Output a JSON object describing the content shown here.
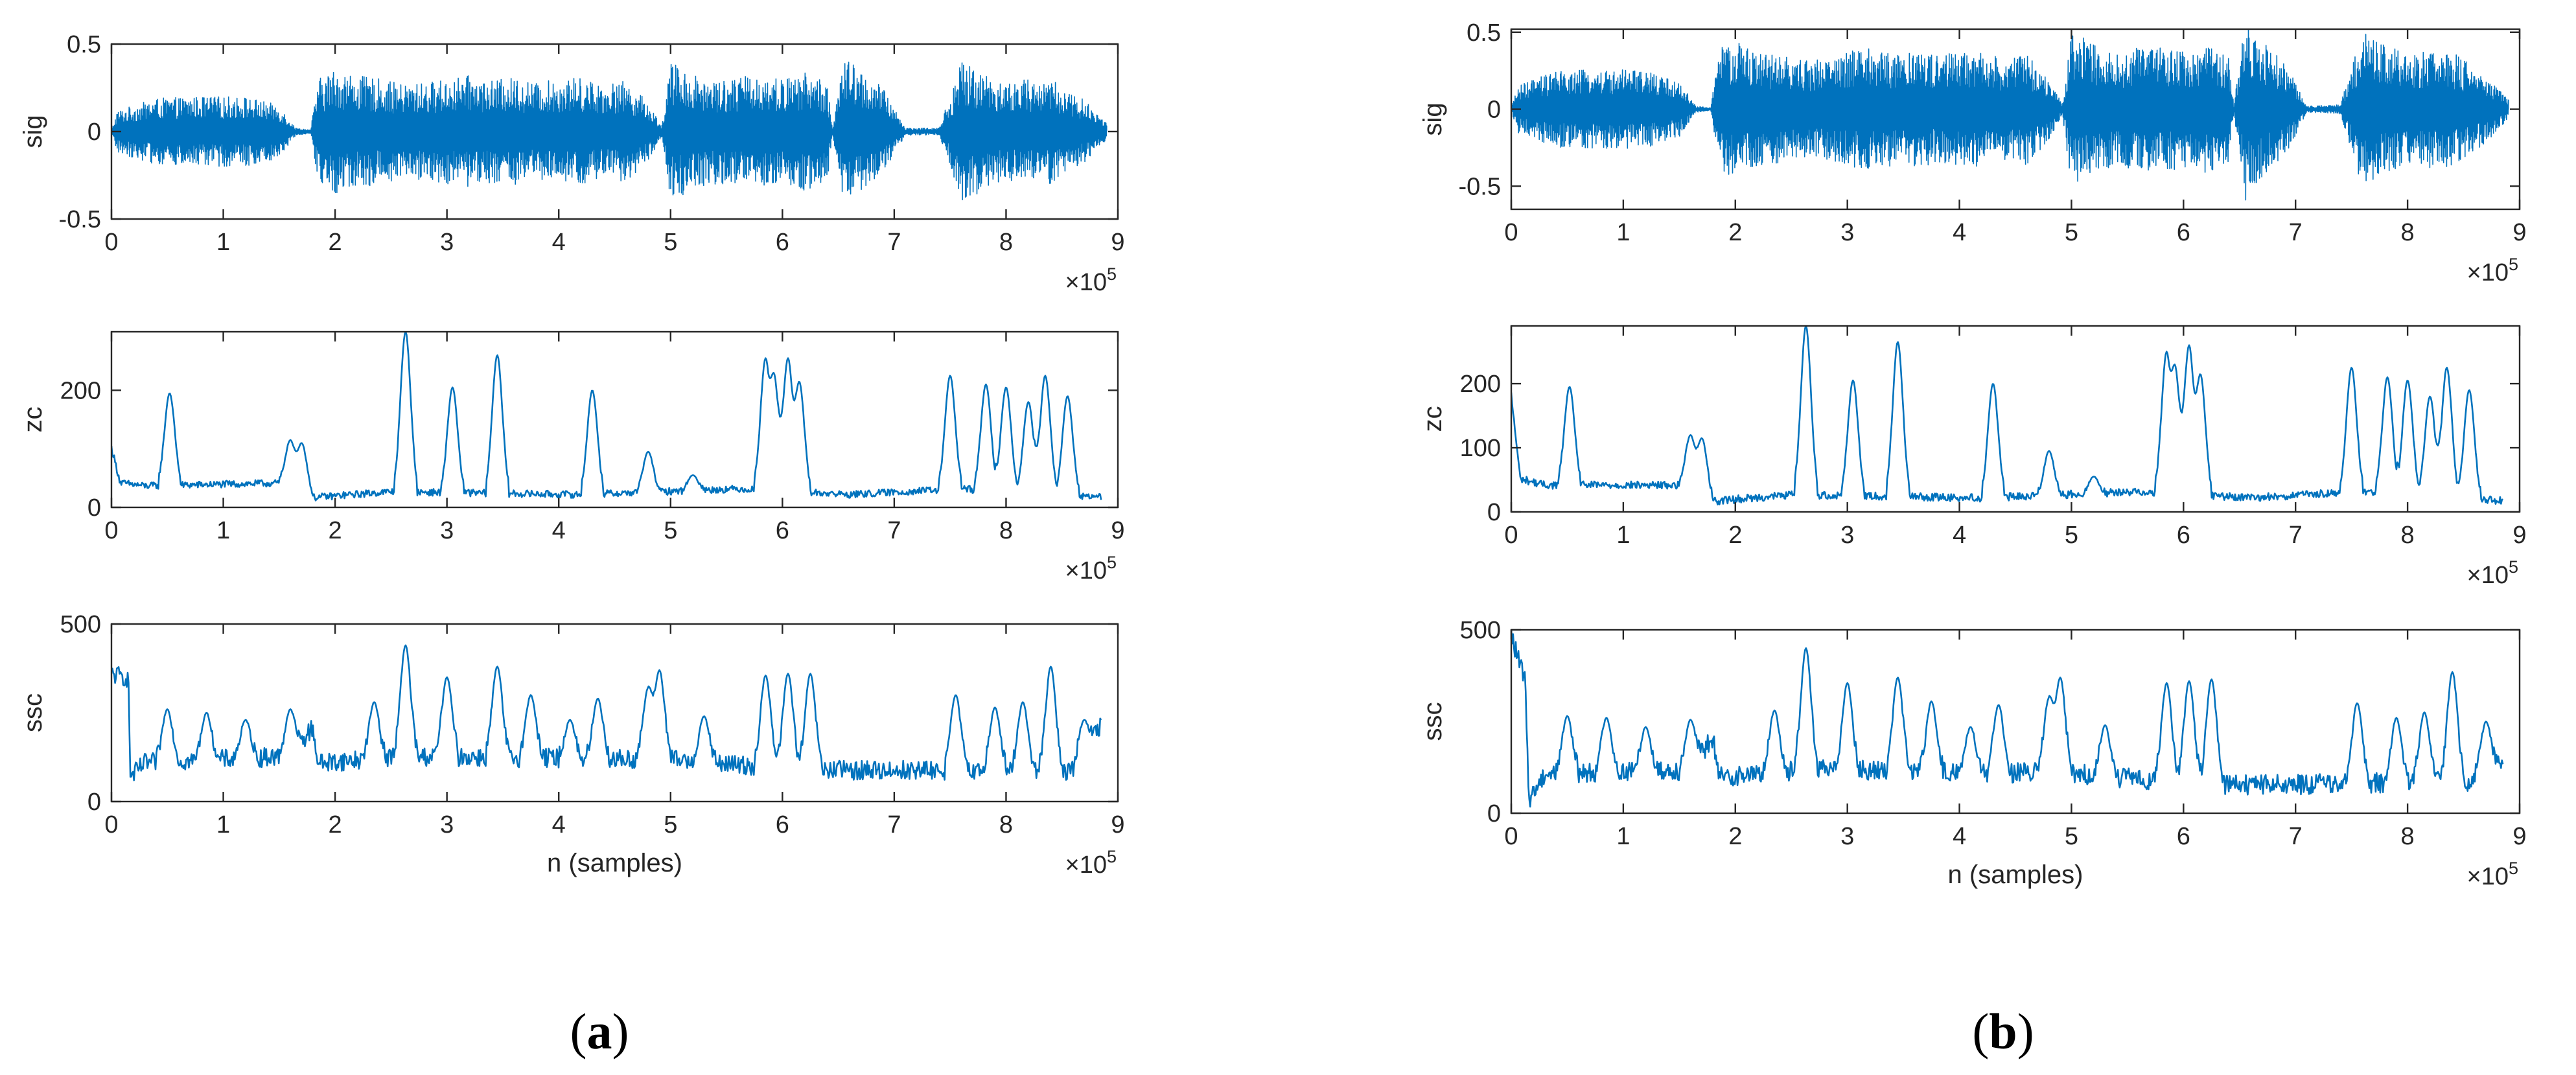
{
  "colors": {
    "series": "#0072BD",
    "axis": "#262626"
  },
  "panels": [
    {
      "id": "a",
      "label_open": "(",
      "label_letter": "a",
      "label_close": ")"
    },
    {
      "id": "b",
      "label_open": "(",
      "label_letter": "b",
      "label_close": ")"
    }
  ],
  "chart_data": [
    {
      "panel": "a",
      "type": "line",
      "subplot": "sig",
      "ylabel": "sig",
      "xlabel": "",
      "xlim": [
        0,
        900000
      ],
      "ylim": [
        -0.5,
        0.5
      ],
      "xticks": [
        0,
        1,
        2,
        3,
        4,
        5,
        6,
        7,
        8,
        9
      ],
      "xtick_multiplier": "×10",
      "xtick_exponent": "5",
      "yticks": [
        "-0.5",
        "0",
        "0.5"
      ],
      "ytick_values": [
        -0.5,
        0,
        0.5
      ],
      "x_end": 890000,
      "envelope": [
        [
          0,
          0.005
        ],
        [
          5000,
          0.12
        ],
        [
          40000,
          0.19
        ],
        [
          80000,
          0.2
        ],
        [
          120000,
          0.2
        ],
        [
          150000,
          0.15
        ],
        [
          165000,
          0.02
        ],
        [
          178000,
          0.01
        ],
        [
          185000,
          0.3
        ],
        [
          200000,
          0.36
        ],
        [
          220000,
          0.32
        ],
        [
          240000,
          0.3
        ],
        [
          260000,
          0.27
        ],
        [
          280000,
          0.28
        ],
        [
          300000,
          0.3
        ],
        [
          320000,
          0.32
        ],
        [
          340000,
          0.29
        ],
        [
          360000,
          0.31
        ],
        [
          380000,
          0.28
        ],
        [
          400000,
          0.3
        ],
        [
          420000,
          0.31
        ],
        [
          440000,
          0.27
        ],
        [
          460000,
          0.29
        ],
        [
          480000,
          0.17
        ],
        [
          492000,
          0.03
        ],
        [
          500000,
          0.4
        ],
        [
          520000,
          0.33
        ],
        [
          540000,
          0.3
        ],
        [
          560000,
          0.31
        ],
        [
          580000,
          0.33
        ],
        [
          600000,
          0.3
        ],
        [
          620000,
          0.34
        ],
        [
          640000,
          0.29
        ],
        [
          645000,
          0.02
        ],
        [
          655000,
          0.43
        ],
        [
          670000,
          0.35
        ],
        [
          690000,
          0.25
        ],
        [
          710000,
          0.02
        ],
        [
          740000,
          0.02
        ],
        [
          760000,
          0.4
        ],
        [
          780000,
          0.34
        ],
        [
          800000,
          0.28
        ],
        [
          820000,
          0.3
        ],
        [
          840000,
          0.3
        ],
        [
          870000,
          0.18
        ],
        [
          890000,
          0.05
        ]
      ]
    },
    {
      "panel": "a",
      "type": "line",
      "subplot": "zc",
      "ylabel": "zc",
      "xlabel": "",
      "xlim": [
        0,
        900000
      ],
      "ylim": [
        0,
        300
      ],
      "xticks": [
        0,
        1,
        2,
        3,
        4,
        5,
        6,
        7,
        8,
        9
      ],
      "xtick_multiplier": "×10",
      "xtick_exponent": "5",
      "yticks": [
        "0",
        "200"
      ],
      "ytick_values": [
        0,
        200
      ],
      "base": [
        [
          0,
          100
        ],
        [
          8000,
          40
        ],
        [
          30000,
          35
        ],
        [
          160000,
          40
        ],
        [
          180000,
          15
        ],
        [
          250000,
          25
        ],
        [
          420000,
          20
        ],
        [
          560000,
          30
        ],
        [
          660000,
          20
        ],
        [
          760000,
          30
        ],
        [
          890000,
          15
        ]
      ],
      "spikes": [
        [
          52000,
          195
        ],
        [
          160000,
          115
        ],
        [
          170000,
          110
        ],
        [
          263000,
          300
        ],
        [
          305000,
          205
        ],
        [
          345000,
          260
        ],
        [
          430000,
          200
        ],
        [
          480000,
          95
        ],
        [
          520000,
          55
        ],
        [
          585000,
          255
        ],
        [
          592000,
          230
        ],
        [
          605000,
          255
        ],
        [
          615000,
          215
        ],
        [
          750000,
          225
        ],
        [
          782000,
          210
        ],
        [
          800000,
          205
        ],
        [
          820000,
          180
        ],
        [
          835000,
          225
        ],
        [
          855000,
          190
        ]
      ]
    },
    {
      "panel": "a",
      "type": "line",
      "subplot": "ssc",
      "ylabel": "ssc",
      "xlabel": "n (samples)",
      "xlim": [
        0,
        900000
      ],
      "ylim": [
        0,
        500
      ],
      "xticks": [
        0,
        1,
        2,
        3,
        4,
        5,
        6,
        7,
        8,
        9
      ],
      "xtick_multiplier": "×10",
      "xtick_exponent": "5",
      "yticks": [
        "0",
        "500"
      ],
      "ytick_values": [
        0,
        500
      ],
      "base": [
        [
          0,
          350
        ],
        [
          15000,
          340
        ],
        [
          17000,
          60
        ],
        [
          30000,
          100
        ],
        [
          160000,
          120
        ],
        [
          180000,
          200
        ],
        [
          185000,
          100
        ],
        [
          260000,
          120
        ],
        [
          500000,
          110
        ],
        [
          580000,
          90
        ],
        [
          640000,
          80
        ],
        [
          700000,
          80
        ],
        [
          860000,
          80
        ],
        [
          890000,
          240
        ]
      ],
      "spikes": [
        [
          50000,
          260
        ],
        [
          85000,
          250
        ],
        [
          120000,
          230
        ],
        [
          160000,
          260
        ],
        [
          235000,
          280
        ],
        [
          263000,
          440
        ],
        [
          300000,
          350
        ],
        [
          345000,
          380
        ],
        [
          375000,
          300
        ],
        [
          410000,
          230
        ],
        [
          435000,
          290
        ],
        [
          480000,
          320
        ],
        [
          490000,
          370
        ],
        [
          530000,
          240
        ],
        [
          585000,
          355
        ],
        [
          605000,
          360
        ],
        [
          625000,
          360
        ],
        [
          755000,
          300
        ],
        [
          790000,
          265
        ],
        [
          815000,
          280
        ],
        [
          840000,
          380
        ],
        [
          870000,
          230
        ]
      ]
    },
    {
      "panel": "b",
      "type": "line",
      "subplot": "sig",
      "ylabel": "sig",
      "xlabel": "",
      "xlim": [
        0,
        900000
      ],
      "ylim": [
        -0.65,
        0.52
      ],
      "xticks": [
        0,
        1,
        2,
        3,
        4,
        5,
        6,
        7,
        8,
        9
      ],
      "xtick_multiplier": "×10",
      "xtick_exponent": "5",
      "yticks": [
        "-0.5",
        "0",
        "0.5"
      ],
      "ytick_values": [
        -0.5,
        0,
        0.5
      ],
      "x_end": 890000,
      "envelope": [
        [
          0,
          0.005
        ],
        [
          5000,
          0.15
        ],
        [
          40000,
          0.25
        ],
        [
          80000,
          0.26
        ],
        [
          120000,
          0.25
        ],
        [
          150000,
          0.18
        ],
        [
          165000,
          0.02
        ],
        [
          178000,
          0.01
        ],
        [
          185000,
          0.4
        ],
        [
          200000,
          0.45
        ],
        [
          220000,
          0.37
        ],
        [
          240000,
          0.35
        ],
        [
          260000,
          0.32
        ],
        [
          280000,
          0.33
        ],
        [
          300000,
          0.38
        ],
        [
          320000,
          0.4
        ],
        [
          340000,
          0.37
        ],
        [
          360000,
          0.38
        ],
        [
          380000,
          0.35
        ],
        [
          400000,
          0.37
        ],
        [
          420000,
          0.38
        ],
        [
          440000,
          0.33
        ],
        [
          460000,
          0.36
        ],
        [
          480000,
          0.2
        ],
        [
          492000,
          0.03
        ],
        [
          500000,
          0.52
        ],
        [
          520000,
          0.42
        ],
        [
          540000,
          0.37
        ],
        [
          560000,
          0.4
        ],
        [
          580000,
          0.41
        ],
        [
          600000,
          0.38
        ],
        [
          620000,
          0.42
        ],
        [
          640000,
          0.37
        ],
        [
          645000,
          0.02
        ],
        [
          655000,
          0.6
        ],
        [
          670000,
          0.45
        ],
        [
          690000,
          0.32
        ],
        [
          710000,
          0.02
        ],
        [
          740000,
          0.03
        ],
        [
          760000,
          0.52
        ],
        [
          780000,
          0.43
        ],
        [
          800000,
          0.36
        ],
        [
          820000,
          0.38
        ],
        [
          840000,
          0.37
        ],
        [
          870000,
          0.22
        ],
        [
          890000,
          0.06
        ]
      ]
    },
    {
      "panel": "b",
      "type": "line",
      "subplot": "zc",
      "ylabel": "zc",
      "xlabel": "",
      "xlim": [
        0,
        900000
      ],
      "ylim": [
        0,
        290
      ],
      "xticks": [
        0,
        1,
        2,
        3,
        4,
        5,
        6,
        7,
        8,
        9
      ],
      "xtick_multiplier": "×10",
      "xtick_exponent": "5",
      "yticks": [
        "0",
        "100",
        "200"
      ],
      "ytick_values": [
        0,
        100,
        200
      ],
      "base": [
        [
          0,
          180
        ],
        [
          8000,
          50
        ],
        [
          30000,
          40
        ],
        [
          160000,
          40
        ],
        [
          180000,
          15
        ],
        [
          250000,
          25
        ],
        [
          420000,
          20
        ],
        [
          560000,
          30
        ],
        [
          660000,
          20
        ],
        [
          760000,
          30
        ],
        [
          890000,
          15
        ]
      ],
      "spikes": [
        [
          52000,
          195
        ],
        [
          160000,
          120
        ],
        [
          170000,
          115
        ],
        [
          263000,
          290
        ],
        [
          305000,
          205
        ],
        [
          345000,
          265
        ],
        [
          430000,
          200
        ],
        [
          480000,
          95
        ],
        [
          520000,
          55
        ],
        [
          585000,
          250
        ],
        [
          592000,
          230
        ],
        [
          605000,
          260
        ],
        [
          615000,
          215
        ],
        [
          750000,
          225
        ],
        [
          782000,
          210
        ],
        [
          800000,
          205
        ],
        [
          820000,
          180
        ],
        [
          835000,
          225
        ],
        [
          855000,
          190
        ]
      ]
    },
    {
      "panel": "b",
      "type": "line",
      "subplot": "ssc",
      "ylabel": "ssc",
      "xlabel": "n (samples)",
      "xlim": [
        0,
        900000
      ],
      "ylim": [
        0,
        500
      ],
      "xticks": [
        0,
        1,
        2,
        3,
        4,
        5,
        6,
        7,
        8,
        9
      ],
      "xtick_multiplier": "×10",
      "xtick_exponent": "5",
      "yticks": [
        "0",
        "500"
      ],
      "ytick_values": [
        0,
        500
      ],
      "base": [
        [
          0,
          480
        ],
        [
          8000,
          390
        ],
        [
          12000,
          370
        ],
        [
          16000,
          30
        ],
        [
          30000,
          100
        ],
        [
          160000,
          110
        ],
        [
          180000,
          200
        ],
        [
          185000,
          90
        ],
        [
          260000,
          110
        ],
        [
          500000,
          100
        ],
        [
          580000,
          80
        ],
        [
          640000,
          70
        ],
        [
          700000,
          70
        ],
        [
          860000,
          80
        ],
        [
          890000,
          150
        ]
      ],
      "spikes": [
        [
          50000,
          265
        ],
        [
          85000,
          260
        ],
        [
          120000,
          235
        ],
        [
          160000,
          255
        ],
        [
          235000,
          280
        ],
        [
          263000,
          450
        ],
        [
          300000,
          355
        ],
        [
          345000,
          370
        ],
        [
          375000,
          305
        ],
        [
          410000,
          235
        ],
        [
          435000,
          295
        ],
        [
          480000,
          315
        ],
        [
          490000,
          370
        ],
        [
          530000,
          240
        ],
        [
          585000,
          355
        ],
        [
          605000,
          360
        ],
        [
          625000,
          365
        ],
        [
          755000,
          300
        ],
        [
          790000,
          260
        ],
        [
          815000,
          275
        ],
        [
          840000,
          385
        ],
        [
          870000,
          250
        ]
      ]
    }
  ]
}
